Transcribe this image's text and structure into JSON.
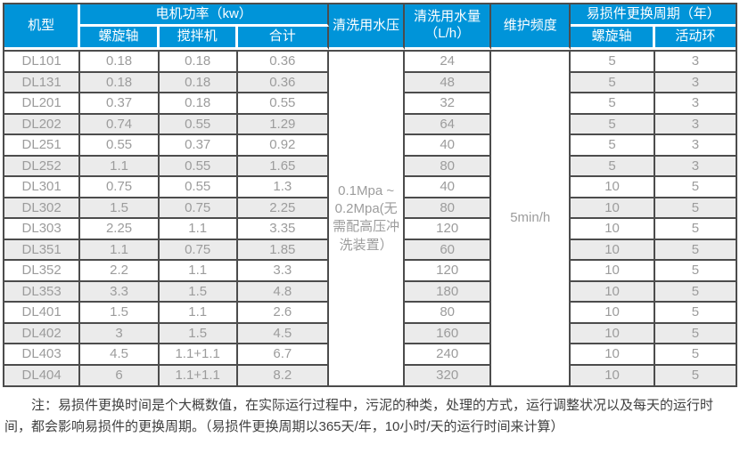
{
  "table": {
    "header": {
      "model": "机型",
      "motor_power_group": "电机功率（kw）",
      "motor_power_cols": [
        "螺旋轴",
        "搅拌机",
        "合计"
      ],
      "wash_pressure": "清洗用水压",
      "wash_volume_line1": "清洗用水量",
      "wash_volume_line2": "（L/h）",
      "maintenance": "维护频度",
      "wear_group": "易损件更换周期（年）",
      "wear_cols": [
        "螺旋轴",
        "活动环"
      ]
    },
    "merged": {
      "wash_pressure_value": "0.1Mpa ~ 0.2Mpa(无需配高压冲洗装置）",
      "maintenance_value": "5min/h"
    },
    "rows": [
      {
        "model": "DL101",
        "screw": "0.18",
        "mixer": "0.18",
        "total": "0.36",
        "water": "24",
        "wear_screw": "5",
        "wear_ring": "3"
      },
      {
        "model": "DL131",
        "screw": "0.18",
        "mixer": "0.18",
        "total": "0.36",
        "water": "48",
        "wear_screw": "5",
        "wear_ring": "3"
      },
      {
        "model": "DL201",
        "screw": "0.37",
        "mixer": "0.18",
        "total": "0.55",
        "water": "32",
        "wear_screw": "5",
        "wear_ring": "3"
      },
      {
        "model": "DL202",
        "screw": "0.74",
        "mixer": "0.55",
        "total": "1.29",
        "water": "64",
        "wear_screw": "5",
        "wear_ring": "3"
      },
      {
        "model": "DL251",
        "screw": "0.55",
        "mixer": "0.37",
        "total": "0.92",
        "water": "40",
        "wear_screw": "5",
        "wear_ring": "3"
      },
      {
        "model": "DL252",
        "screw": "1.1",
        "mixer": "0.55",
        "total": "1.65",
        "water": "80",
        "wear_screw": "5",
        "wear_ring": "3"
      },
      {
        "model": "DL301",
        "screw": "0.75",
        "mixer": "0.55",
        "total": "1.3",
        "water": "40",
        "wear_screw": "10",
        "wear_ring": "5"
      },
      {
        "model": "DL302",
        "screw": "1.5",
        "mixer": "0.75",
        "total": "2.25",
        "water": "80",
        "wear_screw": "10",
        "wear_ring": "5"
      },
      {
        "model": "DL303",
        "screw": "2.25",
        "mixer": "1.1",
        "total": "3.35",
        "water": "120",
        "wear_screw": "10",
        "wear_ring": "5"
      },
      {
        "model": "DL351",
        "screw": "1.1",
        "mixer": "0.75",
        "total": "1.85",
        "water": "60",
        "wear_screw": "10",
        "wear_ring": "5"
      },
      {
        "model": "DL352",
        "screw": "2.2",
        "mixer": "1.1",
        "total": "3.3",
        "water": "120",
        "wear_screw": "10",
        "wear_ring": "5"
      },
      {
        "model": "DL353",
        "screw": "3.3",
        "mixer": "1.5",
        "total": "4.8",
        "water": "180",
        "wear_screw": "10",
        "wear_ring": "5"
      },
      {
        "model": "DL401",
        "screw": "1.5",
        "mixer": "1.1",
        "total": "2.6",
        "water": "80",
        "wear_screw": "10",
        "wear_ring": "5"
      },
      {
        "model": "DL402",
        "screw": "3",
        "mixer": "1.5",
        "total": "4.5",
        "water": "160",
        "wear_screw": "10",
        "wear_ring": "5"
      },
      {
        "model": "DL403",
        "screw": "4.5",
        "mixer": "1.1+1.1",
        "total": "6.7",
        "water": "240",
        "wear_screw": "10",
        "wear_ring": "5"
      },
      {
        "model": "DL404",
        "screw": "6",
        "mixer": "1.1+1.1",
        "total": "8.2",
        "water": "320",
        "wear_screw": "10",
        "wear_ring": "5"
      }
    ]
  },
  "note": "注：易损件更换时间是个大概数值，在实际运行过程中，污泥的种类，处理的方式，运行调整状况以及每天的运行时间，都会影响易损件的更换周期。（易损件更换周期以365天/年，10小时/天的运行时间来计算）",
  "colors": {
    "header_bg": "#0094d9",
    "header_fg": "#ffffff",
    "stripe": "#ebebeb",
    "row_bg": "#ffffff",
    "border_dark": "#4c4c4c",
    "cell_fg": "#9c9c9c",
    "note_fg": "#3f3f3f"
  }
}
